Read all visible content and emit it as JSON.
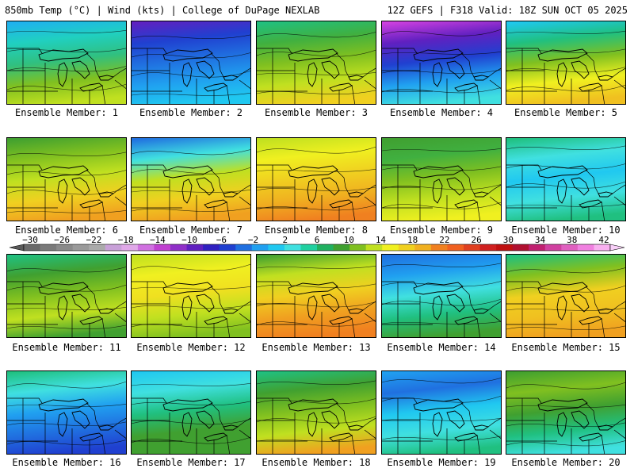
{
  "header": {
    "left": "850mb Temp (°C) | Wind (kts) | College of DuPage NEXLAB",
    "right": "12Z GEFS | F318 Valid: 18Z SUN OCT 05 2025"
  },
  "colorbar": {
    "labels": [
      "-30",
      "-26",
      "-22",
      "-18",
      "-14",
      "-10",
      "-6",
      "-2",
      "2",
      "6",
      "10",
      "14",
      "18",
      "22",
      "26",
      "30",
      "34",
      "38",
      "42"
    ],
    "colors": [
      "#6a6a6a",
      "#7a7a7a",
      "#8a8a8a",
      "#9a9a9a",
      "#aaaaaa",
      "#c8a0d8",
      "#e0a8e8",
      "#d070e0",
      "#c040d0",
      "#9030c8",
      "#6020c0",
      "#3020c0",
      "#2040d0",
      "#2070e0",
      "#20a0f0",
      "#20c8f0",
      "#40e0e0",
      "#20d0a0",
      "#20b060",
      "#40a030",
      "#80c020",
      "#c0e020",
      "#f0f020",
      "#f0d020",
      "#f0b020",
      "#f08020",
      "#f06020",
      "#e04020",
      "#d02020",
      "#c01010",
      "#b01030",
      "#c02070",
      "#d040a0",
      "#e060c0",
      "#f080e0",
      "#f8b0f0"
    ]
  },
  "members": [
    {
      "label": "Ensemble Member: 1",
      "colors": [
        "#20b0f0",
        "#20d0c0",
        "#30c080",
        "#80c020",
        "#c0e020"
      ]
    },
    {
      "label": "Ensemble Member: 2",
      "colors": [
        "#6020c0",
        "#2040d0",
        "#2070e0",
        "#20a0f0",
        "#20c8f0"
      ]
    },
    {
      "label": "Ensemble Member: 3",
      "colors": [
        "#20c080",
        "#40b040",
        "#80c020",
        "#c0e020",
        "#f0d020"
      ]
    },
    {
      "label": "Ensemble Member: 4",
      "colors": [
        "#d040e0",
        "#6020c0",
        "#2040d0",
        "#20a0f0",
        "#40e0e0"
      ]
    },
    {
      "label": "Ensemble Member: 5",
      "colors": [
        "#20c8f0",
        "#20c080",
        "#80c020",
        "#f0f020",
        "#f0c020"
      ]
    },
    {
      "label": "Ensemble Member: 6",
      "colors": [
        "#40a030",
        "#80c020",
        "#c0e020",
        "#f0d020",
        "#f0a020"
      ]
    },
    {
      "label": "Ensemble Member: 7",
      "colors": [
        "#2070e0",
        "#40e0e0",
        "#c0e020",
        "#f0d020",
        "#f0a020"
      ]
    },
    {
      "label": "Ensemble Member: 8",
      "colors": [
        "#c0e020",
        "#f0f020",
        "#f0d020",
        "#f0b020",
        "#f08020"
      ]
    },
    {
      "label": "Ensemble Member: 9",
      "colors": [
        "#40a030",
        "#40b040",
        "#80c020",
        "#c0e020",
        "#f0f020"
      ]
    },
    {
      "label": "Ensemble Member: 10",
      "colors": [
        "#20c080",
        "#40e0e0",
        "#20c8f0",
        "#40e0e0",
        "#20c080"
      ]
    },
    {
      "label": "Ensemble Member: 11",
      "colors": [
        "#20c080",
        "#40a030",
        "#80c020",
        "#c0e020",
        "#40a030"
      ]
    },
    {
      "label": "Ensemble Member: 12",
      "colors": [
        "#c0e020",
        "#f0f020",
        "#f0e020",
        "#c0e020",
        "#80c020"
      ]
    },
    {
      "label": "Ensemble Member: 13",
      "colors": [
        "#40a030",
        "#c0e020",
        "#f0d020",
        "#f0a020",
        "#f08020"
      ]
    },
    {
      "label": "Ensemble Member: 14",
      "colors": [
        "#2070e0",
        "#20a0f0",
        "#40e0e0",
        "#20c080",
        "#40a030"
      ]
    },
    {
      "label": "Ensemble Member: 15",
      "colors": [
        "#20c080",
        "#80c020",
        "#f0d020",
        "#f0c020",
        "#f0a020"
      ]
    },
    {
      "label": "Ensemble Member: 16",
      "colors": [
        "#20c080",
        "#40e0e0",
        "#20a0f0",
        "#2070e0",
        "#2040d0"
      ]
    },
    {
      "label": "Ensemble Member: 17",
      "colors": [
        "#20c8f0",
        "#40e0e0",
        "#20c080",
        "#40a030",
        "#40a030"
      ]
    },
    {
      "label": "Ensemble Member: 18",
      "colors": [
        "#20c080",
        "#40a030",
        "#80c020",
        "#c0e020",
        "#f0a020"
      ]
    },
    {
      "label": "Ensemble Member: 19",
      "colors": [
        "#20a0f0",
        "#2070e0",
        "#20c8f0",
        "#40e0e0",
        "#20c080"
      ]
    },
    {
      "label": "Ensemble Member: 20",
      "colors": [
        "#40a030",
        "#80c020",
        "#40a030",
        "#20c080",
        "#40e0e0"
      ]
    }
  ]
}
